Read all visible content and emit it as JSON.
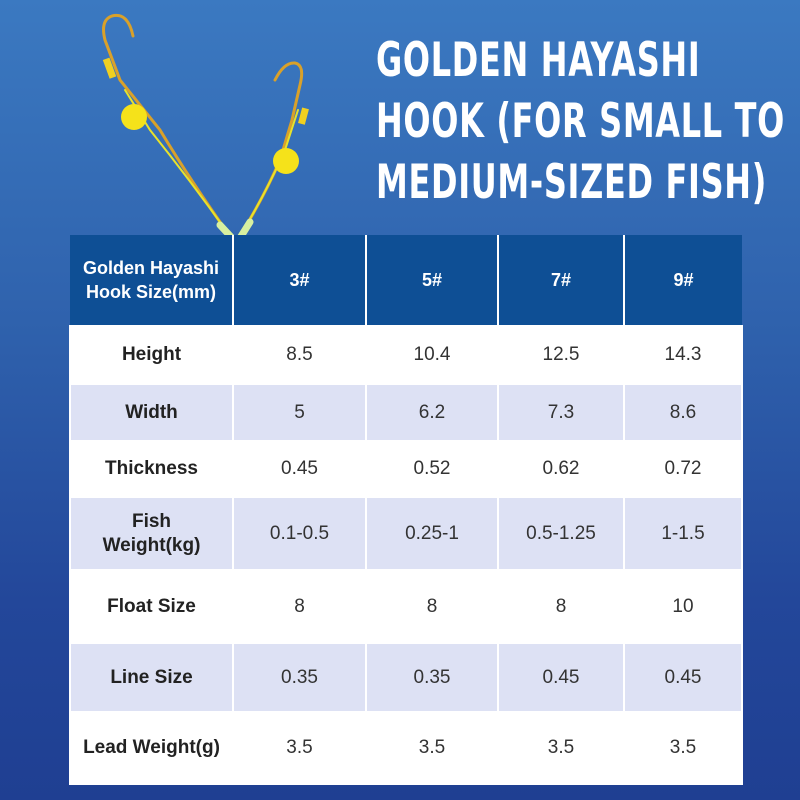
{
  "title_lines": [
    "Golden Hayashi",
    "Hook (for small to",
    "medium-sized fish)"
  ],
  "colors": {
    "header_bg": "#0e4f95",
    "alt_row_bg": "#dde1f4",
    "background_top": "#3b79c1",
    "background_bottom": "#1f3f92"
  },
  "table": {
    "header": {
      "label": "Golden Hayashi Hook Size(mm)",
      "sizes": [
        "3#",
        "5#",
        "7#",
        "9#"
      ]
    },
    "rows": [
      {
        "label": "Height",
        "values": [
          "8.5",
          "10.4",
          "12.5",
          "14.3"
        ]
      },
      {
        "label": "Width",
        "values": [
          "5",
          "6.2",
          "7.3",
          "8.6"
        ]
      },
      {
        "label": "Thickness",
        "values": [
          "0.45",
          "0.52",
          "0.62",
          "0.72"
        ]
      },
      {
        "label": "Fish Weight(kg)",
        "values": [
          "0.1-0.5",
          "0.25-1",
          "0.5-1.25",
          "1-1.5"
        ]
      },
      {
        "label": "Float Size",
        "values": [
          "8",
          "8",
          "8",
          "10"
        ]
      },
      {
        "label": "Line Size",
        "values": [
          "0.35",
          "0.35",
          "0.45",
          "0.45"
        ]
      },
      {
        "label": "Lead Weight(g)",
        "values": [
          "3.5",
          "3.5",
          "3.5",
          "3.5"
        ]
      }
    ]
  }
}
